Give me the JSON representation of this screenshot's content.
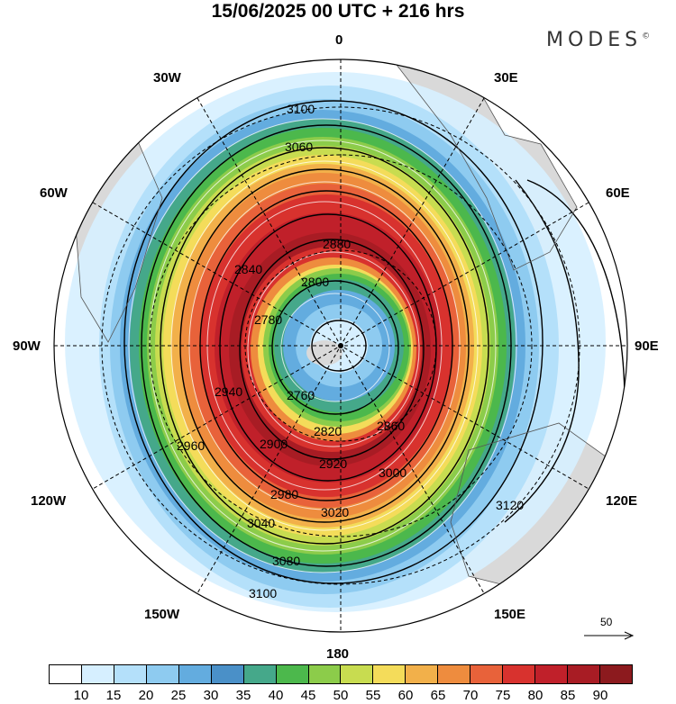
{
  "title": "15/06/2025  00 UTC  + 216 hrs",
  "brand": "MODES",
  "brand_mark": "©",
  "longitude_labels": {
    "top": "0",
    "top_right": "30E",
    "right_upper": "60E",
    "right": "90E",
    "right_lower": "120E",
    "bottom_right": "150E",
    "bottom": "180",
    "bottom_left": "150W",
    "left_lower": "120W",
    "left": "90W",
    "left_upper": "60W",
    "top_left": "30W"
  },
  "reference_vector": "50",
  "colorbar": {
    "ticks": [
      "10",
      "15",
      "20",
      "25",
      "30",
      "35",
      "40",
      "45",
      "50",
      "55",
      "60",
      "65",
      "70",
      "75",
      "80",
      "85",
      "90"
    ],
    "colors": [
      "#ffffff",
      "#d6efff",
      "#b4e0fa",
      "#8ecbf0",
      "#63acdf",
      "#4a90c8",
      "#45a88a",
      "#4cb84c",
      "#8ccc4a",
      "#c8dc50",
      "#f4dc5a",
      "#f2b04a",
      "#ee8c3e",
      "#e8623a",
      "#d8322e",
      "#c0202a",
      "#a81c24",
      "#8c1a1e"
    ]
  },
  "contour_labels": [
    "3100",
    "3100",
    "3080",
    "3060",
    "3040",
    "3020",
    "3000",
    "2980",
    "2960",
    "2940",
    "2920",
    "2900",
    "2880",
    "2860",
    "2840",
    "2820",
    "2800",
    "2780",
    "2760",
    "3120"
  ],
  "colors": {
    "land": "#d9d9d9",
    "ocean": "#ffffff",
    "contour": "#000000"
  }
}
